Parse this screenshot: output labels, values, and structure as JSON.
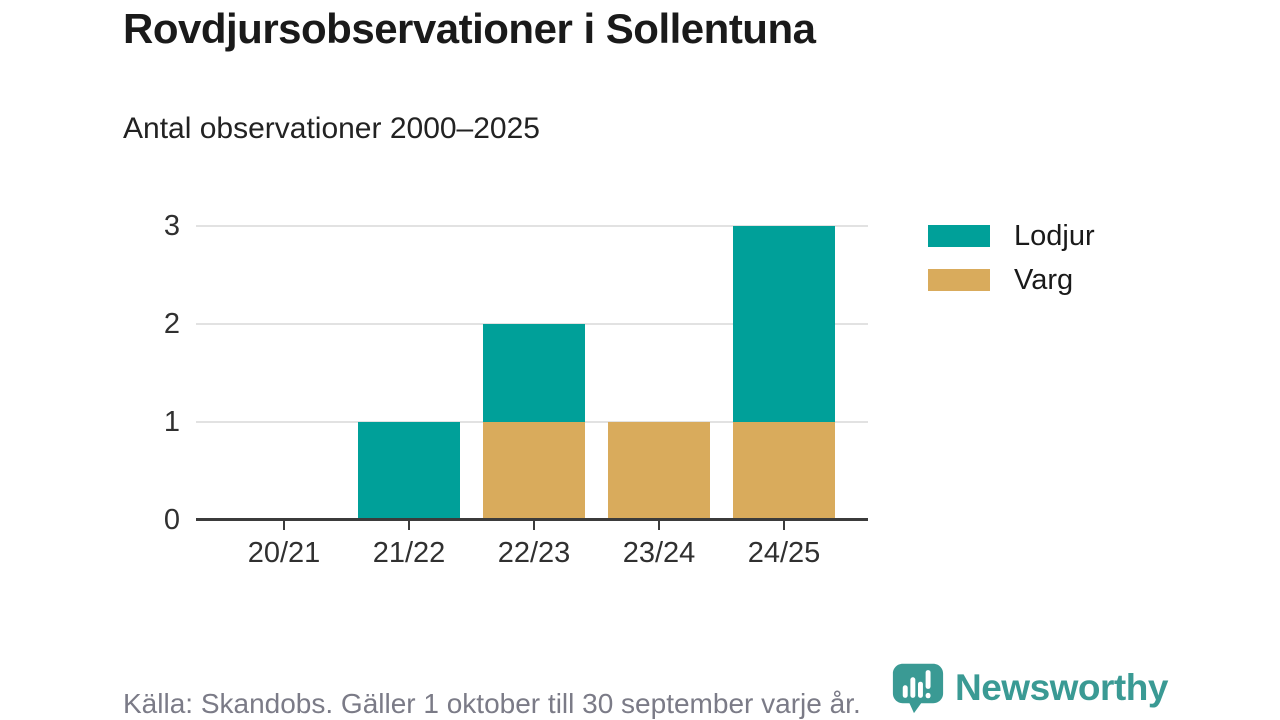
{
  "title": "Rovdjursobservationer i Sollentuna",
  "subtitle": "Antal observationer 2000–2025",
  "chart_data": {
    "type": "bar",
    "stacked": true,
    "title": "Rovdjursobservationer i Sollentuna",
    "subtitle": "Antal observationer 2000–2025",
    "categories": [
      "20/21",
      "21/22",
      "22/23",
      "23/24",
      "24/25"
    ],
    "series": [
      {
        "name": "Varg",
        "color": "#d9ab5c",
        "values": [
          0,
          0,
          1,
          1,
          1
        ]
      },
      {
        "name": "Lodjur",
        "color": "#00a099",
        "values": [
          0,
          1,
          1,
          0,
          2
        ]
      }
    ],
    "totals": [
      0,
      1,
      2,
      1,
      3
    ],
    "legend_order": [
      "Lodjur",
      "Varg"
    ],
    "legend_position": "right-top",
    "xlabel": "",
    "ylabel": "",
    "ylim": [
      0,
      3
    ],
    "yticks": [
      0,
      1,
      2,
      3
    ],
    "grid": "horizontal"
  },
  "colors": {
    "lodjur": "#00a099",
    "varg": "#d9ab5c",
    "gridline": "#e2e2e2",
    "axis": "#3b3b3b",
    "brand_teal": "#3a9a94"
  },
  "footer": {
    "source": "Källa: Skandobs. Gäller 1 oktober till 30 september varje år.",
    "brand": "Newsworthy"
  }
}
